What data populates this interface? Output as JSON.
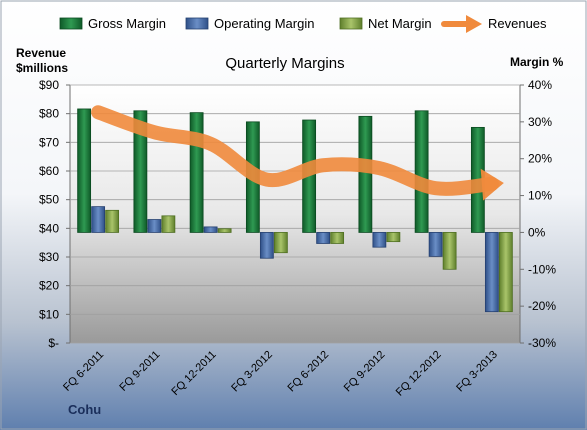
{
  "company": "Cohu",
  "chart_data": {
    "type": "bar",
    "title": "Quarterly Margins",
    "left_axis_label": [
      "Revenue",
      "$millions"
    ],
    "right_axis_label": "Margin %",
    "left_ticks": [
      "$90",
      "$80",
      "$70",
      "$60",
      "$50",
      "$40",
      "$30",
      "$20",
      "$10",
      "$-"
    ],
    "right_ticks": [
      "40%",
      "30%",
      "20%",
      "10%",
      "0%",
      "-10%",
      "-20%",
      "-30%"
    ],
    "left_ylim": [
      0,
      90
    ],
    "right_ylim": [
      -30,
      40
    ],
    "categories": [
      "FQ 6-2011",
      "FQ 9-2011",
      "FQ 12-2011",
      "FQ 3-2012",
      "FQ 6-2012",
      "FQ 9-2012",
      "FQ 12-2012",
      "FQ 3-2013"
    ],
    "series": [
      {
        "name": "Gross Margin",
        "axis": "right",
        "color": "#1f7a3c",
        "values": [
          33.5,
          33.0,
          32.5,
          30.0,
          30.5,
          31.5,
          33.0,
          28.5
        ]
      },
      {
        "name": "Operating Margin",
        "axis": "right",
        "color": "#4a6fa8",
        "values": [
          7.0,
          3.5,
          1.5,
          -7.0,
          -3.0,
          -4.0,
          -6.5,
          -21.5
        ]
      },
      {
        "name": "Net Margin",
        "axis": "right",
        "color": "#8aaa4a",
        "values": [
          6.0,
          4.5,
          1.0,
          -5.5,
          -3.0,
          -2.5,
          -10.0,
          -21.5
        ]
      },
      {
        "name": "Revenues",
        "axis": "left",
        "color": "#f08a3c",
        "values": [
          80.5,
          73.5,
          69.5,
          57.0,
          62.0,
          61.0,
          54.0,
          55.5
        ]
      }
    ],
    "legend_position": "top",
    "gridlines": true
  }
}
